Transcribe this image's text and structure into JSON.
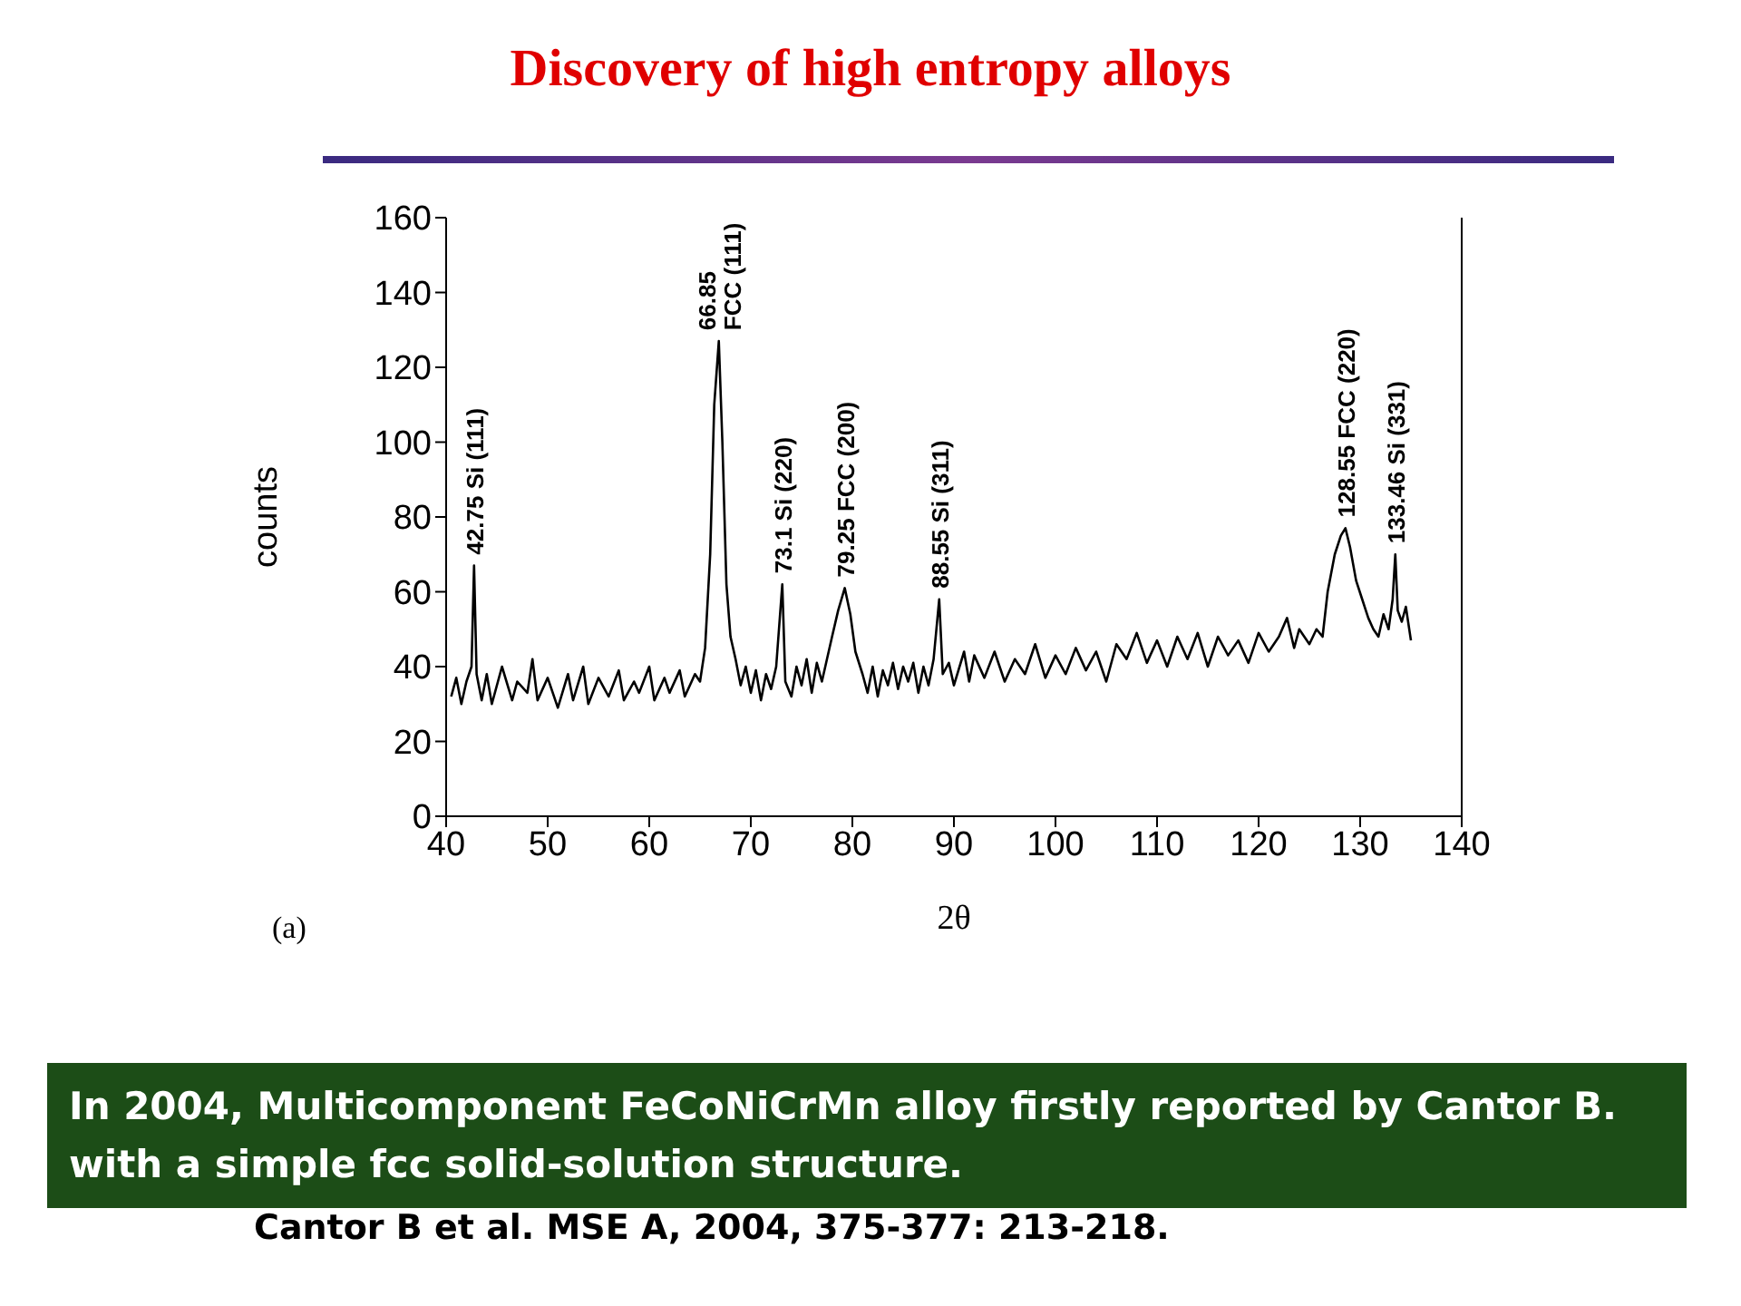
{
  "chart_data": {
    "type": "line",
    "title": "Discovery of high entropy alloys",
    "xlabel": "2θ",
    "ylabel": "counts",
    "xlim": [
      40,
      140
    ],
    "xticks": [
      40,
      50,
      60,
      70,
      80,
      90,
      100,
      110,
      120,
      130,
      140
    ],
    "ylim": [
      0,
      160
    ],
    "yticks": [
      0,
      20,
      40,
      60,
      80,
      100,
      120,
      140,
      160
    ],
    "grid": false,
    "legend": false,
    "marker": "none",
    "line_style": "solid",
    "series": [
      {
        "color": "#000000",
        "x": [
          40.5,
          41,
          41.5,
          42,
          42.5,
          42.75,
          43,
          43.5,
          44,
          44.5,
          45.5,
          46.5,
          47,
          48,
          48.5,
          49,
          50,
          51,
          52,
          52.5,
          53.5,
          54,
          55,
          56,
          57,
          57.5,
          58.5,
          59,
          60,
          60.5,
          61.5,
          62,
          63,
          63.5,
          64.5,
          65,
          65.5,
          66,
          66.4,
          66.85,
          67.2,
          67.6,
          68,
          68.5,
          69,
          69.5,
          70,
          70.5,
          71,
          71.5,
          72,
          72.5,
          73.1,
          73.4,
          74,
          74.5,
          75,
          75.5,
          76,
          76.5,
          77,
          77.5,
          78,
          78.6,
          79.25,
          79.8,
          80.3,
          81,
          81.5,
          82,
          82.5,
          83,
          83.5,
          84,
          84.5,
          85,
          85.5,
          86,
          86.5,
          87,
          87.5,
          88,
          88.55,
          88.9,
          89.5,
          90,
          91,
          91.5,
          92,
          93,
          94,
          95,
          96,
          97,
          98,
          99,
          100,
          101,
          102,
          103,
          104,
          105,
          106,
          107,
          108,
          109,
          110,
          111,
          112,
          113,
          114,
          115,
          116,
          117,
          118,
          119,
          120,
          121,
          122,
          122.8,
          123.5,
          124,
          125,
          125.7,
          126.3,
          126.8,
          127.5,
          128.1,
          128.55,
          129,
          129.6,
          130.2,
          130.8,
          131.3,
          131.8,
          132.3,
          132.8,
          133.2,
          133.46,
          133.7,
          134.1,
          134.5,
          135
        ],
        "values": [
          32,
          37,
          30,
          36,
          40,
          67,
          38,
          31,
          38,
          30,
          40,
          31,
          36,
          33,
          42,
          31,
          37,
          29,
          38,
          31,
          40,
          30,
          37,
          32,
          39,
          31,
          36,
          33,
          40,
          31,
          37,
          33,
          39,
          32,
          38,
          36,
          45,
          70,
          110,
          127,
          100,
          62,
          48,
          42,
          35,
          40,
          33,
          39,
          31,
          38,
          34,
          40,
          62,
          36,
          32,
          40,
          35,
          42,
          33,
          41,
          36,
          42,
          48,
          55,
          61,
          54,
          44,
          38,
          33,
          40,
          32,
          39,
          35,
          41,
          34,
          40,
          36,
          41,
          33,
          40,
          35,
          42,
          58,
          38,
          41,
          35,
          44,
          36,
          43,
          37,
          44,
          36,
          42,
          38,
          46,
          37,
          43,
          38,
          45,
          39,
          44,
          36,
          46,
          42,
          49,
          41,
          47,
          40,
          48,
          42,
          49,
          40,
          48,
          43,
          47,
          41,
          49,
          44,
          48,
          53,
          45,
          50,
          46,
          50,
          48,
          60,
          70,
          75,
          77,
          72,
          63,
          58,
          53,
          50,
          48,
          54,
          50,
          58,
          70,
          55,
          52,
          56,
          47
        ]
      }
    ],
    "annotations": [
      {
        "text": "42.75 Si (111)",
        "x": 42.75,
        "y": 67
      },
      {
        "text": "66.85 FCC (111)",
        "x": 66.85,
        "y": 127
      },
      {
        "text": "73.1 Si (220)",
        "x": 73.1,
        "y": 62
      },
      {
        "text": "79.25 FCC (200)",
        "x": 79.25,
        "y": 61
      },
      {
        "text": "88.55 Si (311)",
        "x": 88.55,
        "y": 58
      },
      {
        "text": "128.55 FCC (220)",
        "x": 128.55,
        "y": 77
      },
      {
        "text": "133.46 Si (331)",
        "x": 133.46,
        "y": 70
      },
      "(a)",
      "In 2004, Multicomponent FeCoNiCrMn alloy firstly reported by Cantor B. with a simple fcc solid-solution structure.",
      "Cantor B et al. MSE A, 2004, 375-377: 213-218."
    ]
  }
}
